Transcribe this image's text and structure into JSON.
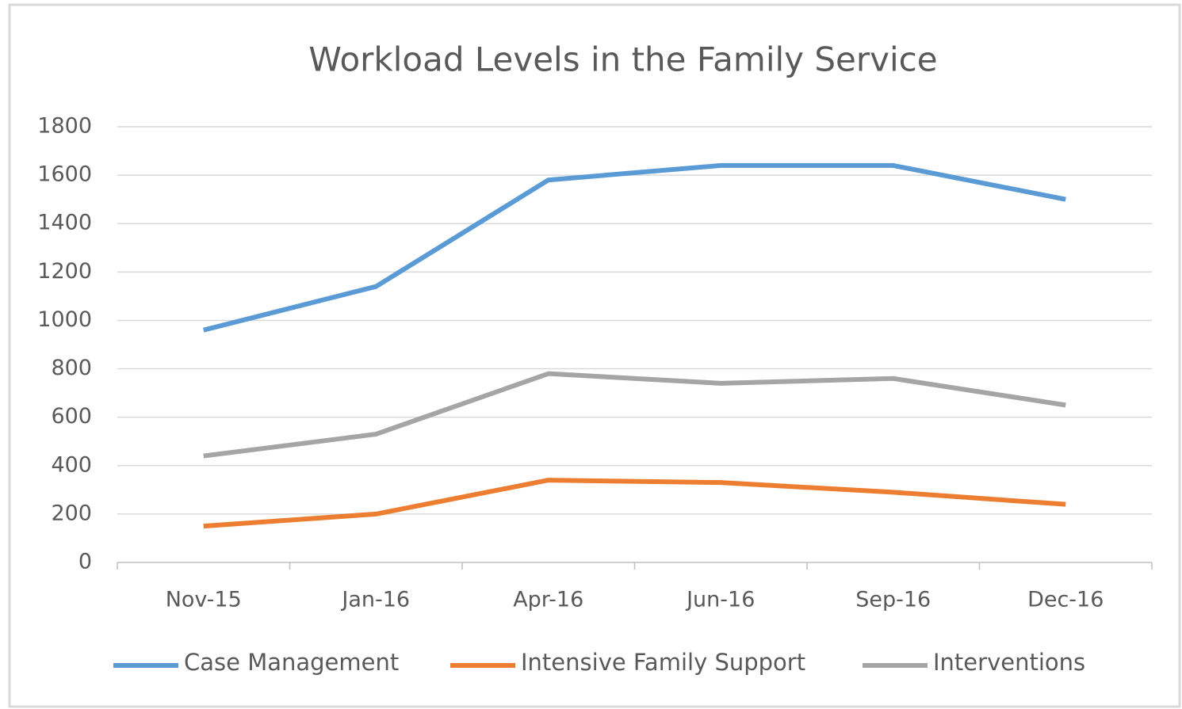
{
  "chart_data": {
    "type": "line",
    "title": "Workload Levels in the Family Service",
    "categories": [
      "Nov-15",
      "Jan-16",
      "Apr-16",
      "Jun-16",
      "Sep-16",
      "Dec-16"
    ],
    "series": [
      {
        "name": "Case Management",
        "color": "#5b9bd5",
        "values": [
          960,
          1140,
          1580,
          1640,
          1640,
          1500
        ]
      },
      {
        "name": "Intensive Family Support",
        "color": "#ed7d31",
        "values": [
          150,
          200,
          340,
          330,
          290,
          240
        ]
      },
      {
        "name": "Interventions",
        "color": "#a5a5a5",
        "values": [
          440,
          530,
          780,
          740,
          760,
          650
        ]
      }
    ],
    "ylim": [
      0,
      1800
    ],
    "yticks": [
      0,
      200,
      400,
      600,
      800,
      1000,
      1200,
      1400,
      1600,
      1800
    ],
    "grid": true,
    "legend": "bottom"
  }
}
